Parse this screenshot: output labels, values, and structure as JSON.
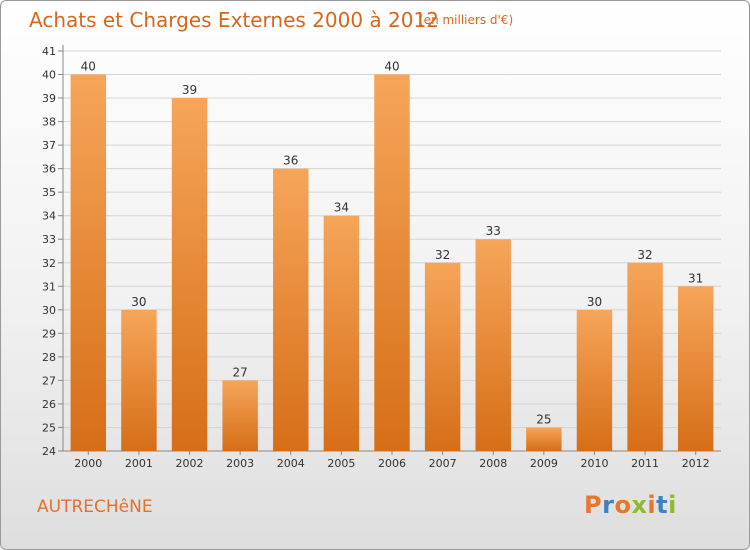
{
  "header": {
    "title": "Achats et Charges Externes 2000 à 2012",
    "subtitle": "(en milliers d'€)"
  },
  "footer": {
    "place": "AUTRECHêNE",
    "brand": "Proxiti",
    "brand_colors": [
      "#e8762b",
      "#3b83c6",
      "#e8762b",
      "#8dbb2e",
      "#e8762b",
      "#3b83c6",
      "#8dbb2e"
    ]
  },
  "chart_data": {
    "type": "bar",
    "title": "Achats et Charges Externes 2000 à 2012",
    "subtitle": "(en milliers d'€)",
    "categories": [
      "2000",
      "2001",
      "2002",
      "2003",
      "2004",
      "2005",
      "2006",
      "2007",
      "2008",
      "2009",
      "2010",
      "2011",
      "2012"
    ],
    "values": [
      40,
      30,
      39,
      27,
      36,
      34,
      40,
      32,
      33,
      25,
      30,
      32,
      31
    ],
    "ylim": [
      24,
      41
    ],
    "yticks": [
      24,
      25,
      26,
      27,
      28,
      29,
      30,
      31,
      32,
      33,
      34,
      35,
      36,
      37,
      38,
      39,
      40,
      41
    ],
    "grid": true,
    "bar_color": "#f0913c",
    "bar_color_light": "#f6a55a",
    "bar_color_dark": "#d66e17",
    "text_color": "#333333"
  }
}
